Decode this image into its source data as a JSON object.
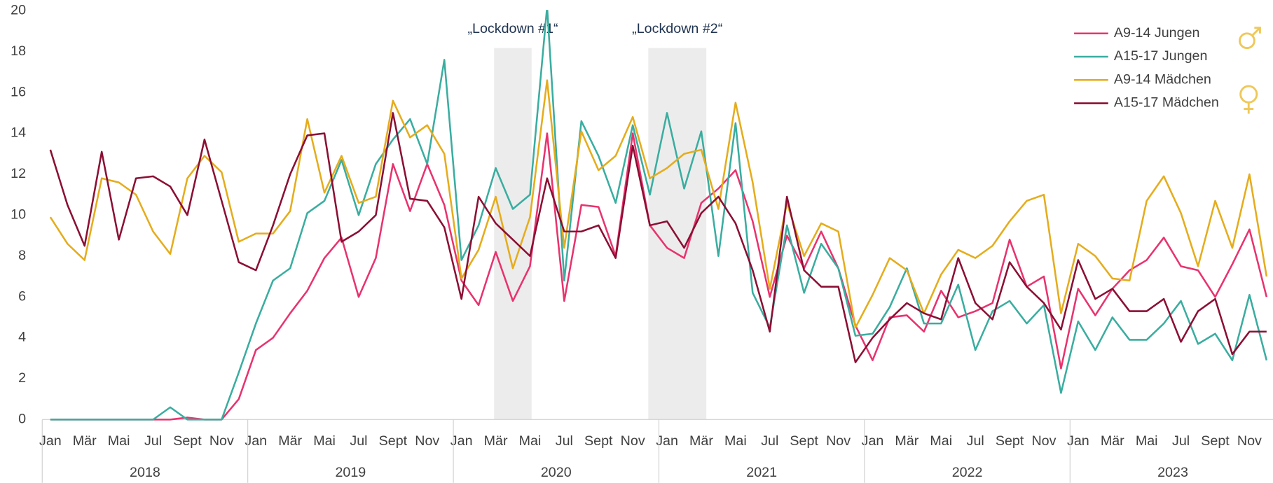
{
  "chart_data": {
    "type": "line",
    "categories": [
      "Jan",
      null,
      "Mär",
      null,
      "Mai",
      null,
      "Jul",
      null,
      "Sept",
      null,
      "Nov",
      null,
      "Jan",
      null,
      "Mär",
      null,
      "Mai",
      null,
      "Jul",
      null,
      "Sept",
      null,
      "Nov",
      null,
      "Jan",
      null,
      "Mär",
      null,
      "Mai",
      null,
      "Jul",
      null,
      "Sept",
      null,
      "Nov",
      null,
      "Jan",
      null,
      "Mär",
      null,
      "Mai",
      null,
      "Jul",
      null,
      "Sept",
      null,
      "Nov",
      null,
      "Jan",
      null,
      "Mär",
      null,
      "Mai",
      null,
      "Jul",
      null,
      "Sept",
      null,
      "Nov",
      null,
      "Jan",
      null,
      "Mär",
      null,
      "Mai",
      null,
      "Jul",
      null,
      "Sept",
      null,
      "Nov",
      null
    ],
    "years": [
      "2018",
      "2019",
      "2020",
      "2021",
      "2022",
      "2023"
    ],
    "annotations": [
      "„Lockdown #1“",
      "„Lockdown #2“"
    ],
    "series": [
      {
        "name": "A9-14 Jungen",
        "color": "#e8336e",
        "values": [
          0,
          0,
          0,
          0,
          0,
          0,
          0,
          0,
          0.1,
          0,
          0,
          1.0,
          3.4,
          4.0,
          5.2,
          6.3,
          7.9,
          8.9,
          6.0,
          7.9,
          12.5,
          10.2,
          12.5,
          10.5,
          6.8,
          5.6,
          8.2,
          5.8,
          7.5,
          14.0,
          5.8,
          10.5,
          10.4,
          8.0,
          14.0,
          9.5,
          8.4,
          7.9,
          10.6,
          11.3,
          12.2,
          9.7,
          6.0,
          9.0,
          7.4,
          9.2,
          7.4,
          4.6,
          2.9,
          5.0,
          5.1,
          4.3,
          6.3,
          5.0,
          5.3,
          5.7,
          8.8,
          6.5,
          7.0,
          2.5,
          6.4,
          5.1,
          6.4,
          7.3,
          7.8,
          8.9,
          7.5,
          7.3,
          6.0,
          7.6,
          9.3,
          6.0
        ]
      },
      {
        "name": "A15-17 Jungen",
        "color": "#3aada0",
        "values": [
          0,
          0,
          0,
          0,
          0,
          0,
          0,
          0.6,
          0,
          0,
          0,
          2.3,
          4.7,
          6.8,
          7.4,
          10.1,
          10.7,
          12.7,
          10.0,
          12.5,
          13.7,
          14.7,
          12.5,
          17.6,
          7.8,
          9.5,
          12.3,
          10.3,
          11.0,
          20.2,
          6.8,
          14.6,
          12.9,
          10.6,
          14.4,
          11.0,
          15.0,
          11.3,
          14.1,
          8.0,
          14.5,
          6.2,
          4.5,
          9.5,
          6.2,
          8.6,
          7.4,
          4.1,
          4.2,
          5.5,
          7.4,
          4.7,
          4.7,
          6.6,
          3.4,
          5.3,
          5.8,
          4.7,
          5.6,
          1.3,
          4.8,
          3.4,
          5.0,
          3.9,
          3.9,
          4.7,
          5.8,
          3.7,
          4.2,
          2.9,
          6.1,
          2.9
        ]
      },
      {
        "name": "A9-14 Mädchen",
        "color": "#e5ac1c",
        "values": [
          9.9,
          8.6,
          7.8,
          11.8,
          11.6,
          11.0,
          9.2,
          8.1,
          11.8,
          12.9,
          12.1,
          8.7,
          9.1,
          9.1,
          10.2,
          14.7,
          11.1,
          12.9,
          10.6,
          10.9,
          15.6,
          13.8,
          14.4,
          13.0,
          6.9,
          8.3,
          10.9,
          7.4,
          9.9,
          16.6,
          8.4,
          14.1,
          12.2,
          12.9,
          14.8,
          11.8,
          12.3,
          13.0,
          13.2,
          10.3,
          15.5,
          11.6,
          6.4,
          10.6,
          8.0,
          9.6,
          9.2,
          4.5,
          6.1,
          7.9,
          7.3,
          5.2,
          7.1,
          8.3,
          7.9,
          8.5,
          9.7,
          10.7,
          11.0,
          5.2,
          8.6,
          8.0,
          6.9,
          6.8,
          10.7,
          11.9,
          10.1,
          7.5,
          10.7,
          8.4,
          12.0,
          7.0
        ]
      },
      {
        "name": "A15-17 Mädchen",
        "color": "#8b0f34",
        "values": [
          13.2,
          10.5,
          8.5,
          13.1,
          8.8,
          11.8,
          11.9,
          11.4,
          10.0,
          13.7,
          10.7,
          7.7,
          7.3,
          9.5,
          12.0,
          13.9,
          14.0,
          8.7,
          9.2,
          10.0,
          15.0,
          10.8,
          10.7,
          9.4,
          5.9,
          10.9,
          9.6,
          8.8,
          8.0,
          11.8,
          9.2,
          9.2,
          9.5,
          7.9,
          13.4,
          9.5,
          9.7,
          8.4,
          10.1,
          10.9,
          9.6,
          7.3,
          4.3,
          10.9,
          7.3,
          6.5,
          6.5,
          2.8,
          4.0,
          4.9,
          5.7,
          5.2,
          4.9,
          7.9,
          5.7,
          4.9,
          7.7,
          6.5,
          5.7,
          4.4,
          7.8,
          5.9,
          6.4,
          5.3,
          5.3,
          5.9,
          3.8,
          5.3,
          5.9,
          3.2,
          4.3,
          4.3
        ]
      }
    ],
    "ylim": [
      0,
      20
    ],
    "yticks": [
      0,
      2,
      4,
      6,
      8,
      10,
      12,
      14,
      16,
      18,
      20
    ],
    "grid": false,
    "legend": "top-right"
  }
}
